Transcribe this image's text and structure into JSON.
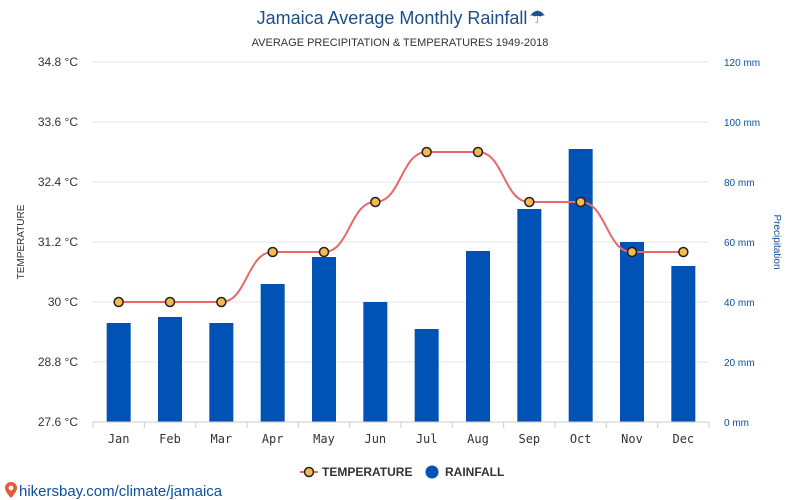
{
  "chart_data": {
    "type": "bar+line",
    "title": "Jamaica Average Monthly Rainfall",
    "title_icon": "umbrella-icon",
    "title_glyph": "☂",
    "subtitle": "AVERAGE PRECIPITATION & TEMPERATURES 1949-2018",
    "categories": [
      "Jan",
      "Feb",
      "Mar",
      "Apr",
      "May",
      "Jun",
      "Jul",
      "Aug",
      "Sep",
      "Oct",
      "Nov",
      "Dec"
    ],
    "series": [
      {
        "name": "TEMPERATURE",
        "axis": "left",
        "type": "line",
        "unit": "°C",
        "values": [
          30,
          30,
          30,
          31,
          31,
          32,
          33,
          33,
          32,
          32,
          31,
          31
        ]
      },
      {
        "name": "RAINFALL",
        "axis": "right",
        "type": "bar",
        "unit": "mm",
        "values": [
          33,
          35,
          33,
          46,
          55,
          40,
          31,
          57,
          71,
          91,
          60,
          52
        ]
      }
    ],
    "left_axis": {
      "label": "TEMPERATURE",
      "ylim": [
        27.6,
        34.8
      ],
      "ticks": [
        "34.8 °C",
        "33.6 °C",
        "32.4 °C",
        "31.2 °C",
        "30 °C",
        "28.8 °C",
        "27.6 °C"
      ]
    },
    "right_axis": {
      "label": "Precipitation",
      "ylim": [
        0,
        120
      ],
      "ticks": [
        "120 mm",
        "100 mm",
        "80 mm",
        "60 mm",
        "40 mm",
        "20 mm",
        "0 mm"
      ]
    },
    "legend": {
      "position": "bottom-center",
      "items": [
        "TEMPERATURE",
        "RAINFALL"
      ]
    },
    "colors": {
      "bar": "#0052b4",
      "line": "#e8696b",
      "marker_fill": "#f5b94e",
      "marker_stroke": "#222222",
      "grid": "#e6e6e6",
      "title": "#1a4f8b",
      "right_axis": "#0d4fa0"
    }
  },
  "source_link": "hikersbay.com/climate/jamaica"
}
